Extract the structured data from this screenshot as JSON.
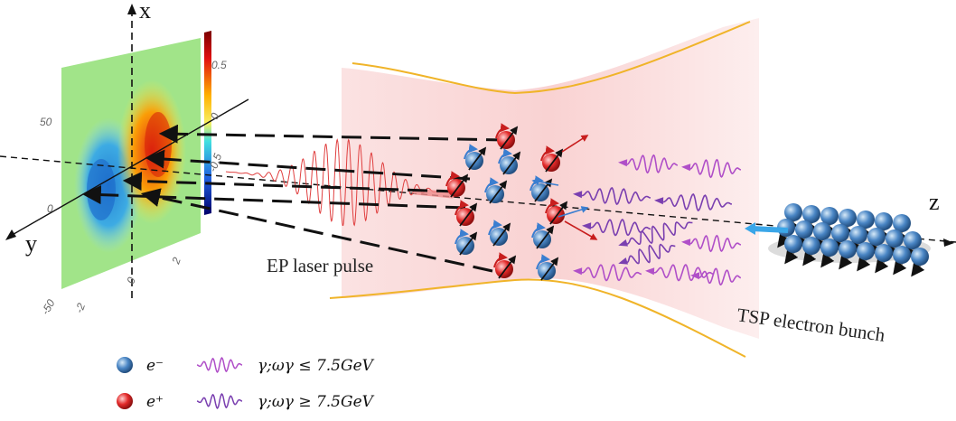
{
  "diagram": {
    "axis_x": "x",
    "axis_y": "y",
    "axis_z": "z",
    "labels": {
      "laser": "EP laser pulse",
      "bunch": "TSP electron bunch"
    },
    "detector": {
      "y_ticks": [
        "50",
        "0",
        "-50"
      ],
      "x_ticks": [
        "-2",
        "0",
        "2"
      ],
      "colorbar_ticks": [
        "0.5",
        "0",
        "-0.5"
      ]
    },
    "legend": [
      {
        "symbol": "e⁻",
        "photon_label": "γ;ωγ ≤ 7.5GeV",
        "ball_color": "#4a86c5",
        "photon_color": "#b04fc8"
      },
      {
        "symbol": "e⁺",
        "photon_label": "γ;ωγ ≥ 7.5GeV",
        "ball_color": "#e32a2a",
        "photon_color": "#7a3fb0"
      }
    ],
    "colors": {
      "electron": "#4a86c5",
      "positron": "#e32a2a",
      "laser": "#e04040",
      "envelope": "#f0b429",
      "beam_bg": "#fde8e8",
      "detector_bg": "#9be37a"
    }
  }
}
